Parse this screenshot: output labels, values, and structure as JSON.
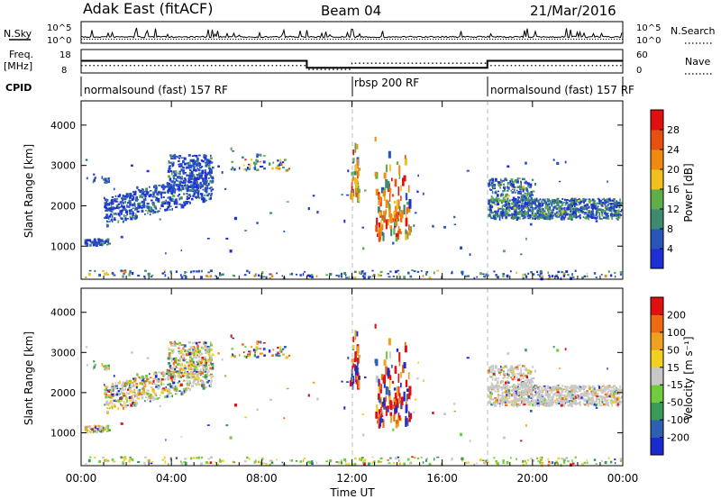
{
  "header": {
    "station": "Adak East (fitACF)",
    "beam": "Beam 04",
    "date": "21/Mar/2016"
  },
  "colors": {
    "power_scale": [
      "#1f2fd6",
      "#2a55b8",
      "#3f8a6f",
      "#5fae4a",
      "#f0c020",
      "#f08a10",
      "#e85010",
      "#e01010"
    ],
    "velocity_scale": [
      "#1a2bd0",
      "#2d5fb5",
      "#3a9a5a",
      "#70cc3a",
      "#c8c8c8",
      "#f0d020",
      "#f0a020",
      "#ec6a10",
      "#e01010"
    ],
    "frame": "#000000",
    "dashed_marker": "#b0b0b0"
  },
  "chart_data": [
    {
      "type": "line",
      "name": "noise-panel",
      "xlim": [
        0,
        24
      ],
      "left_label": "N.Sky",
      "left_ticks": [
        "10^5",
        "10^0"
      ],
      "right_label": "N.Search",
      "right_ticks": [
        "10^5",
        "10^0"
      ]
    },
    {
      "type": "line",
      "name": "frequency-nave-panel",
      "xlim": [
        0,
        24
      ],
      "left_label_1": "Freq.",
      "left_label_2": "[MHz]",
      "left_ticks": [
        "18",
        "8"
      ],
      "right_label": "Nave",
      "right_ticks": [
        "60",
        "0"
      ],
      "freq_segments": [
        {
          "x0": 0,
          "x1": 10,
          "value": 13.2
        },
        {
          "x0": 10,
          "x1": 18,
          "value": 10.2
        },
        {
          "x0": 18,
          "x1": 24,
          "value": 13.2
        }
      ],
      "nave_segments": [
        {
          "x0": 0,
          "x1": 10,
          "value": 19
        },
        {
          "x0": 10,
          "x1": 12,
          "value": 9
        },
        {
          "x0": 12,
          "x1": 18,
          "value": 25
        },
        {
          "x0": 18,
          "x1": 24,
          "value": 19
        }
      ]
    },
    {
      "type": "table",
      "name": "cpid-panel",
      "left_label": "CPID",
      "segments": [
        {
          "start": 0,
          "end": 12,
          "label": "normalsound (fast) 157 RF"
        },
        {
          "start": 12,
          "end": 18,
          "label": "rbsp 200 RF"
        },
        {
          "start": 18,
          "end": 24,
          "label": "normalsound (fast) 157 RF"
        }
      ]
    },
    {
      "type": "heatmap",
      "name": "power",
      "ylabel": "Slant Range [km]",
      "xlim": [
        0,
        24
      ],
      "ylim": [
        180,
        4600
      ],
      "yticks": [
        1000,
        2000,
        3000,
        4000
      ],
      "colorbar_label": "Power [dB]",
      "colorbar_ticks": [
        "28",
        "24",
        "20",
        "16",
        "12",
        "8",
        "4"
      ],
      "markers": [
        12,
        18
      ]
    },
    {
      "type": "heatmap",
      "name": "velocity",
      "ylabel": "Slant Range [km]",
      "xlabel": "Time UT",
      "xlim": [
        0,
        24
      ],
      "ylim": [
        180,
        4600
      ],
      "yticks": [
        1000,
        2000,
        3000,
        4000
      ],
      "xticks": [
        "00:00",
        "04:00",
        "08:00",
        "12:00",
        "16:00",
        "20:00",
        "00:00"
      ],
      "colorbar_label": "Velocity [m s⁻¹]",
      "colorbar_ticks": [
        "200",
        "100",
        "50",
        "15",
        "-15",
        "-50",
        "-100",
        "-200"
      ],
      "markers": [
        12,
        18
      ]
    }
  ]
}
